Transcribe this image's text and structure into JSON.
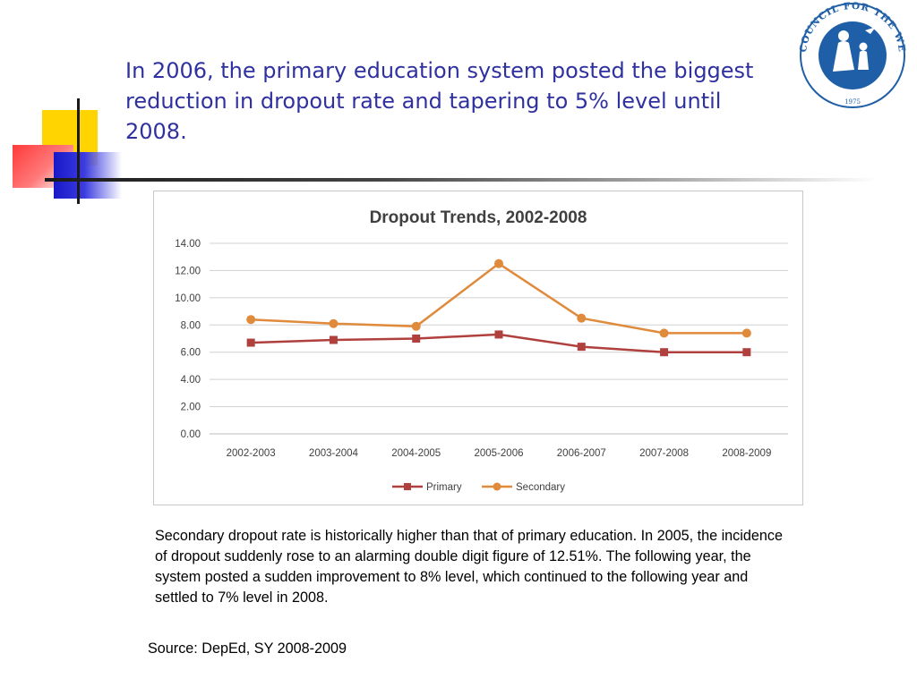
{
  "slide": {
    "title": "In 2006, the primary education system posted the biggest reduction in dropout rate and tapering to 5% level until 2008.",
    "body": "Secondary dropout rate is historically higher than that of primary education. In 2005, the incidence of dropout suddenly rose to an alarming double digit figure of 12.51%. The following year, the system posted a sudden improvement to 8% level, which continued to the following year and settled to 7% level in 2008.",
    "source": "Source: DepEd, SY 2008-2009"
  },
  "logo": {
    "text": "COUNCIL FOR THE WELFARE OF CHILDREN",
    "year": "1975",
    "icon": "family-silhouette-icon",
    "color": "#1f5fa8"
  },
  "colors": {
    "title": "#2f31a0",
    "primary": "#b0403d",
    "secondary": "#e08a3c",
    "grid": "#d0d0d0"
  },
  "chart_data": {
    "type": "line",
    "title": "Dropout Trends, 2002-2008",
    "categories": [
      "2002-2003",
      "2003-2004",
      "2004-2005",
      "2005-2006",
      "2006-2007",
      "2007-2008",
      "2008-2009"
    ],
    "y_ticks": [
      "0.00",
      "2.00",
      "4.00",
      "6.00",
      "8.00",
      "10.00",
      "12.00",
      "14.00"
    ],
    "ylim": [
      0,
      14
    ],
    "grid": true,
    "legend_position": "bottom",
    "series": [
      {
        "name": "Primary",
        "marker": "square",
        "color": "#b0403d",
        "values": [
          6.7,
          6.9,
          7.0,
          7.3,
          6.4,
          6.0,
          6.0
        ]
      },
      {
        "name": "Secondary",
        "marker": "circle",
        "color": "#e08a3c",
        "values": [
          8.4,
          8.1,
          7.9,
          12.51,
          8.5,
          7.4,
          7.4
        ]
      }
    ]
  }
}
